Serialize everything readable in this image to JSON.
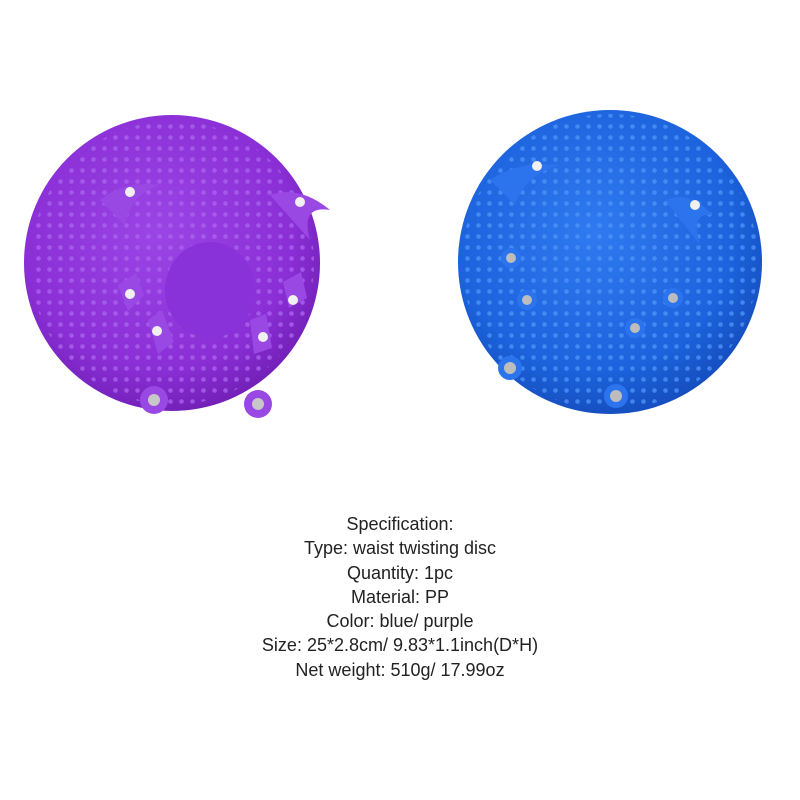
{
  "spec": {
    "title": "Specification:",
    "lines": [
      "Type: waist twisting disc",
      "Quantity: 1pc",
      "Material: PP",
      "Color: blue/ purple",
      "Size: 25*2.8cm/ 9.83*1.1inch(D*H)",
      "Net weight: 510g/ 17.99oz"
    ]
  }
}
